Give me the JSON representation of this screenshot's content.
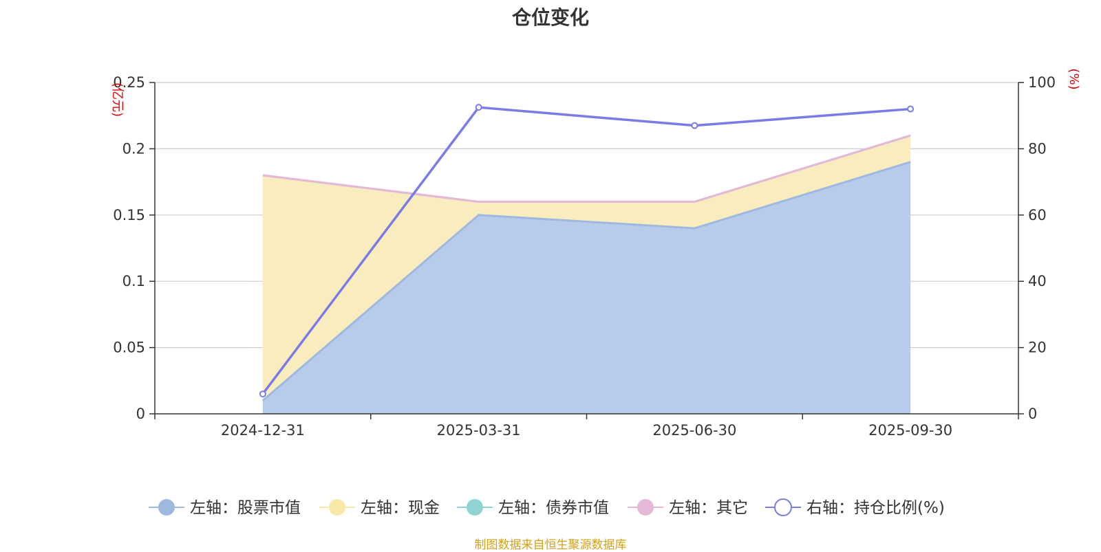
{
  "chart_data": {
    "type": "area",
    "title": "仓位变化",
    "categories": [
      "2024-12-31",
      "2025-03-31",
      "2025-06-30",
      "2025-09-30"
    ],
    "left_axis": {
      "unit": "(亿元)",
      "ylim": [
        0,
        0.25
      ],
      "ticks": [
        "0",
        "0.05",
        "0.1",
        "0.15",
        "0.2",
        "0.25"
      ]
    },
    "right_axis": {
      "unit": "(%)",
      "ylim": [
        0,
        100
      ],
      "ticks": [
        "0",
        "20",
        "40",
        "60",
        "80",
        "100"
      ]
    },
    "series": [
      {
        "name": "左轴：股票市值",
        "axis": "left",
        "stack": true,
        "values": [
          0.01,
          0.15,
          0.14,
          0.19
        ],
        "color": "#9eb8e0",
        "fill": "#b8cbea"
      },
      {
        "name": "左轴：现金",
        "axis": "left",
        "stack": true,
        "values": [
          0.17,
          0.01,
          0.02,
          0.02
        ],
        "color": "#f8e8a8",
        "fill": "#f9ecbf"
      },
      {
        "name": "左轴：债券市值",
        "axis": "left",
        "stack": true,
        "values": [
          0,
          0,
          0,
          0
        ],
        "color": "#8fd3d3",
        "fill": "#8fd3d3"
      },
      {
        "name": "左轴：其它",
        "axis": "left",
        "stack": true,
        "values": [
          0,
          0,
          0,
          0
        ],
        "color": "#e6b8d8",
        "fill": "#e6b8d8"
      },
      {
        "name": "右轴：持仓比例(%)",
        "axis": "right",
        "stack": false,
        "values": [
          6,
          92.5,
          87,
          92
        ],
        "color": "#7b7be8"
      }
    ],
    "grid": true,
    "legend": "bottom"
  },
  "source_note": "制图数据来自恒生聚源数据库"
}
